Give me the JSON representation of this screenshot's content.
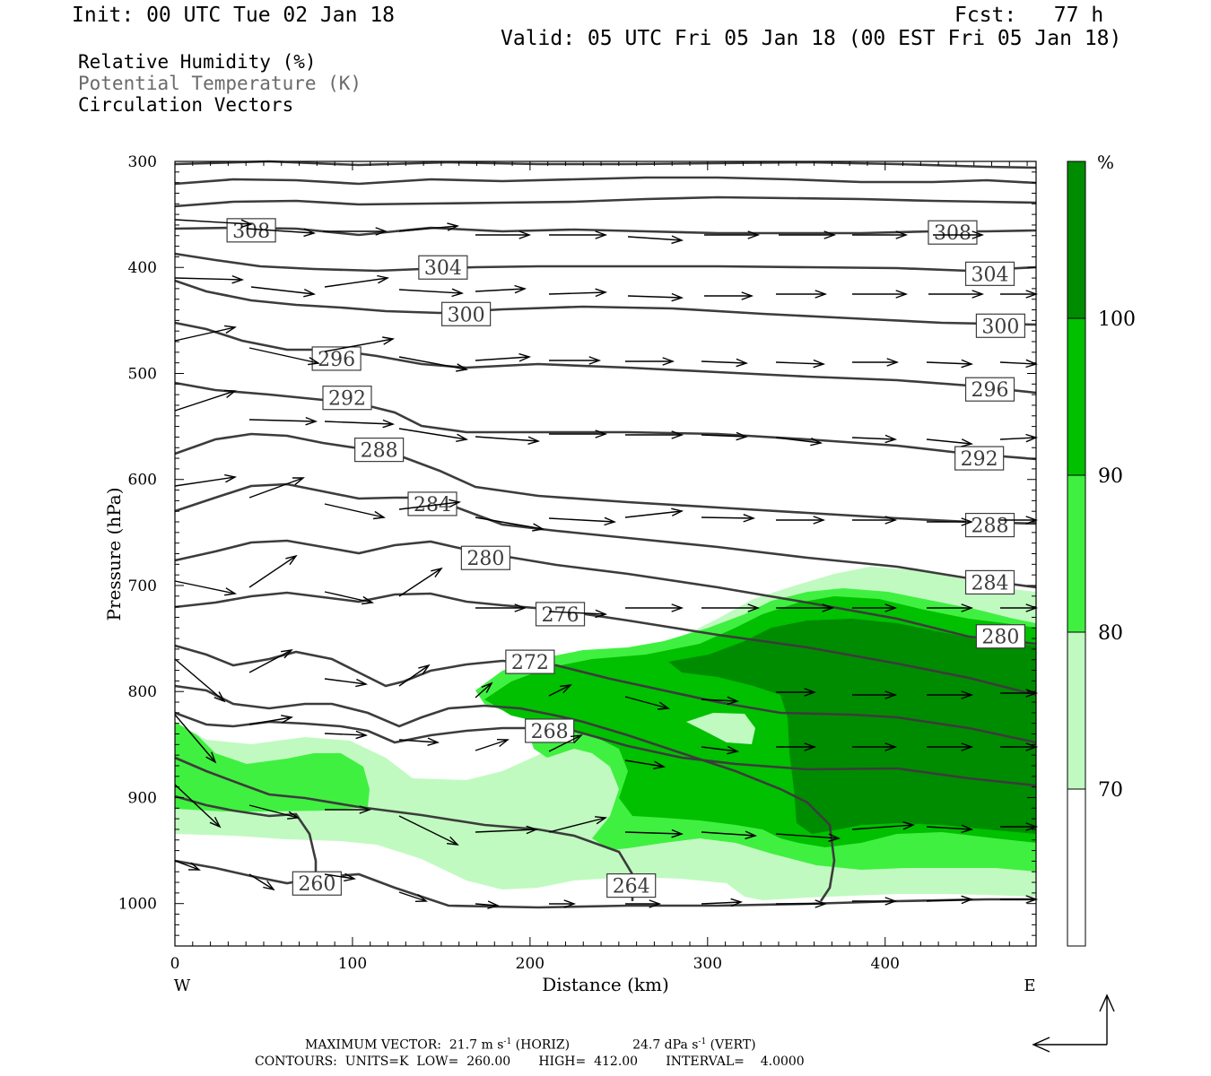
{
  "header": {
    "init": "Init: 00 UTC Tue 02 Jan 18",
    "fcst": "Fcst:   77 h",
    "valid": "Valid: 05 UTC Fri 05 Jan 18 (00 EST Fri 05 Jan 18)"
  },
  "legend_lines": [
    "Relative Humidity (%)",
    "Potential Temperature (K)",
    "Circulation Vectors"
  ],
  "colors": {
    "rh70": "#c0fac0",
    "rh80": "#40f040",
    "rh90": "#00c000",
    "rh100": "#008c00",
    "contour": "#3c3c3c",
    "legend_gray": "#6a6a6a"
  },
  "colorbar": {
    "unit": "%",
    "levels": [
      "70",
      "80",
      "90",
      "100"
    ]
  },
  "footer": {
    "max_vector_prefix": "MAXIMUM VECTOR:  21.7 m s",
    "max_vector_horiz": " (HORIZ)",
    "max_vector_vert_value": "24.7 dPa s",
    "max_vector_vert": " (VERT)",
    "exponent": "-1",
    "contours": "CONTOURS:  UNITS=K  LOW=  260.00       HIGH=  412.00       INTERVAL=    4.0000"
  },
  "chart_data": {
    "type": "cross-section",
    "xlabel": "Distance (km)",
    "ylabel": "Pressure (hPa)",
    "x_ticks": [
      "0",
      "100",
      "200",
      "300",
      "400"
    ],
    "y_ticks": [
      "300",
      "400",
      "500",
      "600",
      "700",
      "800",
      "900",
      "1000"
    ],
    "xlim": [
      0,
      485
    ],
    "ylim": [
      1040,
      300
    ],
    "left_end_label": "W",
    "right_end_label": "E",
    "theta_contour_labels": [
      {
        "value": "308",
        "x": 43,
        "p": 365
      },
      {
        "value": "308",
        "x": 438,
        "p": 367
      },
      {
        "value": "304",
        "x": 151,
        "p": 400
      },
      {
        "value": "304",
        "x": 459,
        "p": 406
      },
      {
        "value": "300",
        "x": 164,
        "p": 444
      },
      {
        "value": "300",
        "x": 465,
        "p": 455
      },
      {
        "value": "296",
        "x": 91,
        "p": 486
      },
      {
        "value": "296",
        "x": 459,
        "p": 515
      },
      {
        "value": "292",
        "x": 97,
        "p": 523
      },
      {
        "value": "292",
        "x": 453,
        "p": 580
      },
      {
        "value": "288",
        "x": 115,
        "p": 572
      },
      {
        "value": "288",
        "x": 459,
        "p": 643
      },
      {
        "value": "284",
        "x": 145,
        "p": 623
      },
      {
        "value": "284",
        "x": 459,
        "p": 697
      },
      {
        "value": "280",
        "x": 175,
        "p": 674
      },
      {
        "value": "280",
        "x": 465,
        "p": 748
      },
      {
        "value": "276",
        "x": 217,
        "p": 727
      },
      {
        "value": "272",
        "x": 200,
        "p": 772
      },
      {
        "value": "268",
        "x": 211,
        "p": 837
      },
      {
        "value": "264",
        "x": 257,
        "p": 983
      },
      {
        "value": "260",
        "x": 80,
        "p": 981
      }
    ]
  }
}
